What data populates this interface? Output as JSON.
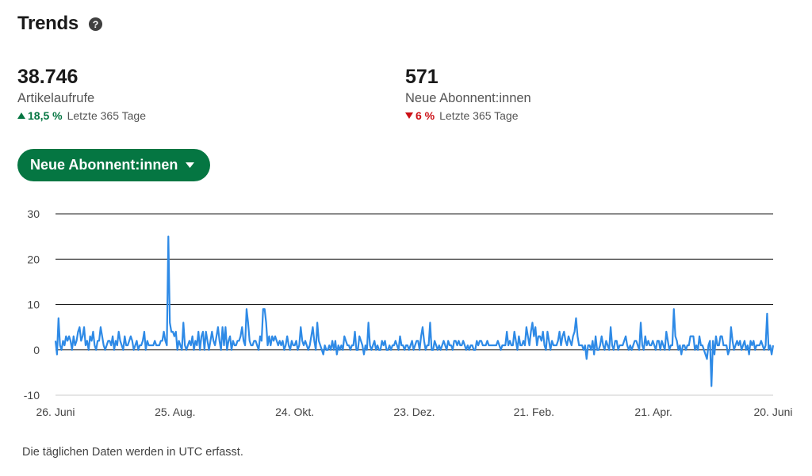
{
  "header": {
    "title": "Trends",
    "help_icon": "question-circle-icon"
  },
  "metrics": [
    {
      "value": "38.746",
      "label": "Artikelaufrufe",
      "change": "18,5 %",
      "direction": "up",
      "period": "Letzte 365 Tage"
    },
    {
      "value": "571",
      "label": "Neue Abonnent:innen",
      "change": "6 %",
      "direction": "down",
      "period": "Letzte 365 Tage"
    }
  ],
  "selector": {
    "label": "Neue Abonnent:innen",
    "icon": "caret-down-icon"
  },
  "colors": {
    "accent": "#057642",
    "line": "#2e8ae6",
    "up": "#057642",
    "down": "#cc1016"
  },
  "chart_data": {
    "type": "line",
    "title": "",
    "xlabel": "",
    "ylabel": "",
    "ylim": [
      -10,
      30
    ],
    "yticks": [
      30,
      20,
      10,
      0,
      -10
    ],
    "xticks": [
      "26. Juni",
      "25. Aug.",
      "24. Okt.",
      "23. Dez.",
      "21. Feb.",
      "21. Apr.",
      "20. Juni"
    ],
    "grid": true,
    "series": [
      {
        "values": [
          2,
          -1,
          7,
          1,
          0,
          2,
          1,
          3,
          2,
          3,
          2,
          0,
          3,
          1,
          2,
          4,
          5,
          2,
          3,
          5,
          1,
          2,
          0,
          3,
          2,
          4,
          1,
          0,
          2,
          2,
          5,
          3,
          1,
          0,
          1,
          2,
          2,
          1,
          3,
          0,
          2,
          1,
          4,
          2,
          1,
          0,
          3,
          1,
          1,
          2,
          3,
          2,
          0,
          1,
          2,
          0,
          1,
          1,
          2,
          4,
          0,
          2,
          1,
          1,
          1,
          1,
          2,
          1,
          1,
          1,
          2,
          2,
          4,
          2,
          1,
          25,
          6,
          4,
          4,
          3,
          4,
          0,
          2,
          1,
          0,
          6,
          1,
          0,
          1,
          2,
          1,
          3,
          0,
          2,
          1,
          4,
          0,
          3,
          4,
          0,
          4,
          2,
          0,
          2,
          4,
          2,
          1,
          3,
          5,
          2,
          0,
          5,
          1,
          5,
          0,
          2,
          3,
          0,
          2,
          1,
          1,
          2,
          2,
          3,
          5,
          2,
          1,
          9,
          6,
          2,
          1,
          1,
          2,
          2,
          1,
          0,
          3,
          2,
          9,
          9,
          6,
          1,
          3,
          1,
          3,
          2,
          3,
          2,
          1,
          2,
          1,
          2,
          0,
          1,
          3,
          1,
          0,
          2,
          1,
          1,
          2,
          0,
          1,
          5,
          2,
          1,
          2,
          1,
          0,
          1,
          3,
          5,
          2,
          0,
          6,
          2,
          1,
          0,
          -1,
          1,
          0,
          0,
          1,
          0,
          2,
          0,
          2,
          -1,
          1,
          0,
          1,
          0,
          3,
          2,
          1,
          1,
          0,
          1,
          1,
          4,
          0,
          0,
          3,
          2,
          1,
          -1,
          1,
          0,
          6,
          1,
          0,
          1,
          2,
          0,
          1,
          0,
          0,
          2,
          1,
          2,
          0,
          0,
          1,
          0,
          1,
          1,
          2,
          1,
          0,
          3,
          1,
          1,
          0,
          1,
          1,
          0,
          1,
          2,
          0,
          1,
          2,
          2,
          0,
          3,
          5,
          2,
          0,
          1,
          1,
          6,
          0,
          0,
          2,
          1,
          0,
          1,
          0,
          1,
          2,
          1,
          0,
          2,
          1,
          1,
          0,
          2,
          2,
          1,
          2,
          1,
          1,
          2,
          1,
          0,
          1,
          0,
          1,
          1,
          0,
          0,
          2,
          1,
          2,
          2,
          1,
          1,
          1,
          2,
          1,
          1,
          1,
          1,
          1,
          1,
          2,
          1,
          0,
          1,
          1,
          1,
          4,
          1,
          2,
          1,
          1,
          4,
          2,
          0,
          3,
          1,
          1,
          2,
          1,
          5,
          3,
          1,
          4,
          6,
          3,
          5,
          1,
          3,
          3,
          2,
          4,
          1,
          0,
          4,
          2,
          0,
          2,
          1,
          1,
          1,
          2,
          4,
          1,
          3,
          4,
          2,
          1,
          3,
          2,
          1,
          3,
          4,
          7,
          3,
          1,
          1,
          1,
          0,
          1,
          -2,
          1,
          1,
          0,
          2,
          -1,
          3,
          0,
          0,
          1,
          3,
          1,
          0,
          2,
          1,
          0,
          5,
          1,
          0,
          2,
          2,
          0,
          1,
          1,
          1,
          2,
          3,
          1,
          0,
          1,
          0,
          1,
          2,
          2,
          1,
          0,
          6,
          1,
          0,
          3,
          1,
          2,
          1,
          1,
          2,
          1,
          0,
          2,
          2,
          0,
          2,
          1,
          0,
          4,
          2,
          0,
          1,
          1,
          9,
          3,
          2,
          0,
          1,
          -1,
          1,
          1,
          0,
          1,
          1,
          3,
          3,
          3,
          0,
          1,
          0,
          3,
          1,
          1,
          0,
          -1,
          -2,
          1,
          2,
          -8,
          2,
          -1,
          3,
          1,
          1,
          3,
          3,
          1,
          1,
          1,
          -1,
          0,
          5,
          2,
          0,
          1,
          2,
          1,
          2,
          0,
          1,
          2,
          0,
          1,
          -1,
          2,
          1,
          2,
          0,
          1,
          1,
          1,
          2,
          1,
          0,
          1,
          8,
          0,
          1,
          -1,
          1
        ]
      }
    ]
  },
  "footnote": "Die täglichen Daten werden in UTC erfasst."
}
